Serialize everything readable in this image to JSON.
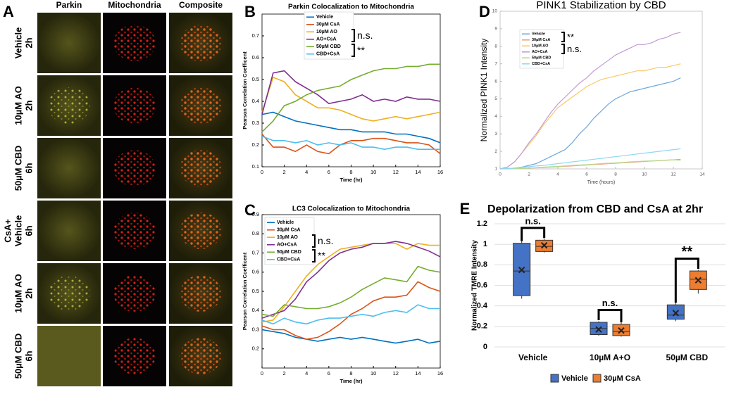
{
  "panel_labels": [
    "A",
    "B",
    "C",
    "D",
    "E"
  ],
  "panel_a": {
    "columns": [
      "Parkin",
      "Mitochondria",
      "Composite"
    ],
    "rows": [
      [
        "Vehicle",
        "2h"
      ],
      [
        "10µM AO",
        "2h"
      ],
      [
        "50µM CBD",
        "6h"
      ],
      [
        "CsA+",
        "Vehicle",
        "6h"
      ],
      [
        "10µM AO",
        "2h"
      ],
      [
        "50µM CBD",
        "6h"
      ]
    ]
  },
  "chart_data": [
    {
      "type": "line",
      "title": "Parkin Colocalization to Mitochondria",
      "x_label": "Time (hr)",
      "y_label": "Pearson Correlation Coefficent",
      "x": [
        0,
        1,
        2,
        3,
        4,
        5,
        6,
        7,
        8,
        9,
        10,
        11,
        12,
        13,
        14,
        15,
        16
      ],
      "xlim": [
        0,
        16
      ],
      "xticks": [
        0,
        2,
        4,
        6,
        8,
        10,
        12,
        14,
        16
      ],
      "ylim": [
        0.1,
        0.8
      ],
      "yticks": [
        0.1,
        0.2,
        0.3,
        0.4,
        0.5,
        0.6,
        0.7
      ],
      "series": [
        {
          "name": "Vehicle",
          "color": "#0072bd",
          "values": [
            0.34,
            0.35,
            0.33,
            0.31,
            0.3,
            0.29,
            0.28,
            0.27,
            0.27,
            0.26,
            0.26,
            0.26,
            0.25,
            0.25,
            0.24,
            0.23,
            0.21
          ]
        },
        {
          "name": "30µM CsA",
          "color": "#d95319",
          "values": [
            0.25,
            0.19,
            0.19,
            0.17,
            0.2,
            0.17,
            0.16,
            0.2,
            0.22,
            0.22,
            0.23,
            0.23,
            0.22,
            0.21,
            0.21,
            0.2,
            0.16
          ]
        },
        {
          "name": "10µM AO",
          "color": "#edb120",
          "values": [
            0.35,
            0.51,
            0.49,
            0.43,
            0.4,
            0.37,
            0.37,
            0.36,
            0.34,
            0.32,
            0.31,
            0.32,
            0.33,
            0.32,
            0.33,
            0.34,
            0.35
          ]
        },
        {
          "name": "AO+CsA",
          "color": "#7e2f8e",
          "values": [
            0.34,
            0.53,
            0.54,
            0.49,
            0.46,
            0.43,
            0.39,
            0.4,
            0.41,
            0.43,
            0.4,
            0.41,
            0.4,
            0.42,
            0.41,
            0.41,
            0.4
          ]
        },
        {
          "name": "50µM CBD",
          "color": "#77ac30",
          "values": [
            0.26,
            0.31,
            0.38,
            0.4,
            0.43,
            0.45,
            0.46,
            0.47,
            0.5,
            0.52,
            0.54,
            0.55,
            0.55,
            0.56,
            0.56,
            0.57,
            0.57
          ]
        },
        {
          "name": "CBD+CsA",
          "color": "#4dbeee",
          "values": [
            0.24,
            0.22,
            0.22,
            0.21,
            0.22,
            0.2,
            0.21,
            0.2,
            0.21,
            0.19,
            0.19,
            0.18,
            0.19,
            0.19,
            0.18,
            0.18,
            0.18
          ]
        }
      ],
      "annotations": [
        "n.s.",
        "**"
      ]
    },
    {
      "type": "line",
      "title": "LC3 Colocalization to Mitochondria",
      "x_label": "Time (hr)",
      "y_label": "Pearson Correlation Coefficent",
      "x": [
        0,
        1,
        2,
        3,
        4,
        5,
        6,
        7,
        8,
        9,
        10,
        11,
        12,
        13,
        14,
        15,
        16
      ],
      "xlim": [
        0,
        16
      ],
      "xticks": [
        0,
        2,
        4,
        6,
        8,
        10,
        12,
        14,
        16
      ],
      "ylim": [
        0.1,
        0.9
      ],
      "yticks": [
        0.2,
        0.3,
        0.4,
        0.5,
        0.6,
        0.7,
        0.8,
        0.9
      ],
      "series": [
        {
          "name": "Vehicle",
          "color": "#0072bd",
          "values": [
            0.3,
            0.29,
            0.28,
            0.26,
            0.25,
            0.24,
            0.25,
            0.26,
            0.25,
            0.26,
            0.25,
            0.24,
            0.23,
            0.24,
            0.25,
            0.23,
            0.24
          ]
        },
        {
          "name": "30µM CsA",
          "color": "#d95319",
          "values": [
            0.32,
            0.3,
            0.3,
            0.27,
            0.25,
            0.26,
            0.29,
            0.33,
            0.38,
            0.41,
            0.45,
            0.47,
            0.47,
            0.48,
            0.55,
            0.52,
            0.5
          ]
        },
        {
          "name": "10µM AO",
          "color": "#edb120",
          "values": [
            0.34,
            0.35,
            0.42,
            0.5,
            0.58,
            0.64,
            0.68,
            0.72,
            0.73,
            0.74,
            0.75,
            0.75,
            0.75,
            0.72,
            0.75,
            0.74,
            0.74
          ]
        },
        {
          "name": "AO+CsA",
          "color": "#7e2f8e",
          "values": [
            0.36,
            0.38,
            0.4,
            0.46,
            0.55,
            0.6,
            0.66,
            0.7,
            0.72,
            0.73,
            0.75,
            0.75,
            0.76,
            0.75,
            0.73,
            0.71,
            0.68
          ]
        },
        {
          "name": "50µM CBD",
          "color": "#77ac30",
          "values": [
            0.38,
            0.37,
            0.43,
            0.42,
            0.41,
            0.41,
            0.42,
            0.44,
            0.47,
            0.51,
            0.54,
            0.57,
            0.56,
            0.55,
            0.63,
            0.61,
            0.6
          ]
        },
        {
          "name": "CBD+CsA",
          "color": "#4dbeee",
          "values": [
            0.35,
            0.33,
            0.36,
            0.34,
            0.33,
            0.35,
            0.36,
            0.36,
            0.37,
            0.38,
            0.37,
            0.39,
            0.4,
            0.39,
            0.43,
            0.41,
            0.41
          ]
        }
      ],
      "annotations": [
        "n.s.",
        "**"
      ]
    },
    {
      "type": "line",
      "title": "PINK1 Stabilization by CBD",
      "x_label": "Time (hours)",
      "y_label": "Normalized PINK1 Intensity",
      "x": [
        0,
        0.5,
        1,
        1.5,
        2,
        2.5,
        3,
        3.5,
        4,
        4.5,
        5,
        5.5,
        6,
        6.5,
        7,
        7.5,
        8,
        8.5,
        9,
        9.5,
        10,
        10.5,
        11,
        11.5,
        12,
        12.5
      ],
      "xlim": [
        0,
        14
      ],
      "xticks": [
        0,
        2,
        4,
        6,
        8,
        10,
        12,
        14
      ],
      "ylim": [
        1,
        10
      ],
      "yticks": [
        1,
        2,
        3,
        4,
        5,
        6,
        7,
        8,
        9,
        10
      ],
      "series": [
        {
          "name": "Vehicle",
          "color": "#6fa8dc",
          "values": [
            1,
            1.02,
            1.05,
            1.1,
            1.2,
            1.3,
            1.5,
            1.7,
            1.9,
            2.1,
            2.5,
            3.0,
            3.4,
            3.9,
            4.3,
            4.7,
            5.0,
            5.2,
            5.4,
            5.5,
            5.6,
            5.7,
            5.8,
            5.9,
            6.0,
            6.2
          ]
        },
        {
          "name": "30µM CsA",
          "color": "#f0a070",
          "values": [
            1,
            1.02,
            1.03,
            1.05,
            1.05,
            1.06,
            1.08,
            1.1,
            1.12,
            1.15,
            1.17,
            1.2,
            1.22,
            1.25,
            1.27,
            1.3,
            1.32,
            1.35,
            1.37,
            1.4,
            1.42,
            1.45,
            1.47,
            1.5,
            1.52,
            1.55
          ]
        },
        {
          "name": "10µM AO",
          "color": "#f7c96a",
          "values": [
            1,
            1.1,
            1.4,
            1.9,
            2.4,
            2.9,
            3.5,
            4.0,
            4.5,
            4.8,
            5.1,
            5.4,
            5.7,
            5.9,
            6.1,
            6.2,
            6.3,
            6.4,
            6.5,
            6.6,
            6.6,
            6.7,
            6.8,
            6.8,
            6.9,
            7.0
          ]
        },
        {
          "name": "AO+CsA",
          "color": "#c39bd3",
          "values": [
            1,
            1.1,
            1.4,
            1.9,
            2.5,
            3.0,
            3.6,
            4.2,
            4.7,
            5.1,
            5.5,
            5.9,
            6.2,
            6.6,
            6.9,
            7.2,
            7.5,
            7.7,
            7.9,
            8.1,
            8.1,
            8.2,
            8.4,
            8.5,
            8.7,
            8.8
          ]
        },
        {
          "name": "50µM CBD",
          "color": "#b5d98c",
          "values": [
            1,
            1.0,
            1.02,
            1.03,
            1.05,
            1.07,
            1.1,
            1.12,
            1.14,
            1.17,
            1.2,
            1.22,
            1.24,
            1.27,
            1.3,
            1.32,
            1.34,
            1.37,
            1.4,
            1.42,
            1.44,
            1.46,
            1.48,
            1.5,
            1.52,
            1.5
          ]
        },
        {
          "name": "CBD+CsA",
          "color": "#8fd8f2",
          "values": [
            1,
            1.02,
            1.05,
            1.1,
            1.13,
            1.17,
            1.2,
            1.25,
            1.3,
            1.35,
            1.4,
            1.45,
            1.5,
            1.55,
            1.6,
            1.65,
            1.7,
            1.75,
            1.8,
            1.85,
            1.9,
            1.95,
            2.0,
            2.05,
            2.1,
            2.15
          ]
        }
      ],
      "annotations": [
        "**",
        "n.s."
      ]
    },
    {
      "type": "box",
      "title": "Depolarization from CBD and CsA at 2hr",
      "y_label": "Normalized TMRE Intensity",
      "categories": [
        "Vehicle",
        "10µM A+O",
        "50µM CBD"
      ],
      "ylim": [
        0,
        1.2
      ],
      "yticks": [
        0,
        0.2,
        0.4,
        0.6,
        0.8,
        1,
        1.2
      ],
      "grid": true,
      "series": [
        {
          "name": "Vehicle",
          "color": "#4472c4",
          "min": [
            0.47,
            0.11,
            0.25
          ],
          "q1": [
            0.5,
            0.12,
            0.27
          ],
          "median": [
            0.74,
            0.18,
            0.31
          ],
          "q3": [
            1.01,
            0.24,
            0.41
          ],
          "max": [
            1.03,
            0.25,
            0.43
          ],
          "mean": [
            0.75,
            0.17,
            0.33
          ]
        },
        {
          "name": "30µM CsA",
          "color": "#ed7d31",
          "min": [
            0.92,
            0.1,
            0.52
          ],
          "q1": [
            0.93,
            0.11,
            0.56
          ],
          "median": [
            0.98,
            0.15,
            0.66
          ],
          "q3": [
            1.04,
            0.22,
            0.74
          ],
          "max": [
            1.05,
            0.25,
            0.75
          ],
          "mean": [
            0.99,
            0.16,
            0.65
          ]
        }
      ],
      "annotations": [
        "n.s.",
        "n.s.",
        "**"
      ]
    }
  ]
}
